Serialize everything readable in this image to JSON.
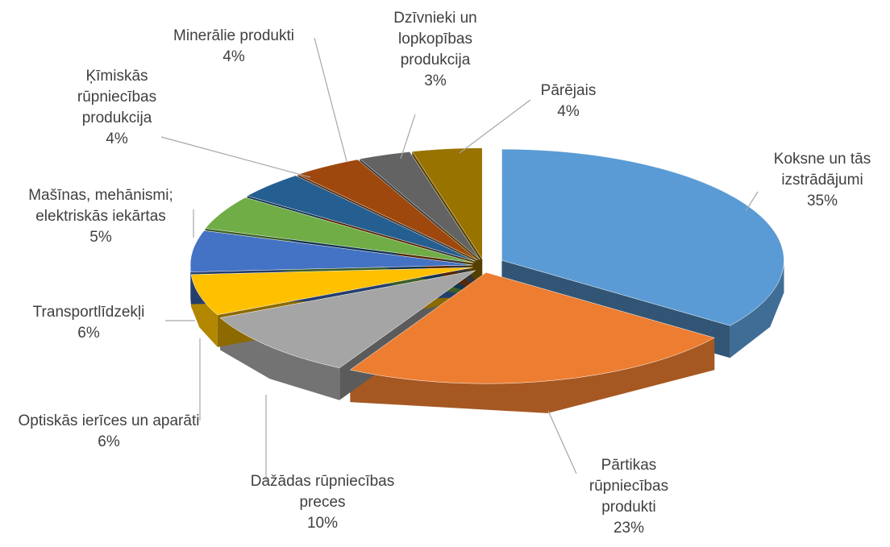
{
  "chart_data": {
    "type": "pie",
    "categories": [
      "Koksne un tās izstrādājumi",
      "Pārtikas rūpniecības produkti",
      "Dažādas rūpniecības preces",
      "Optiskās ierīces un aparāti",
      "Transportlīdzekļi",
      "Mašīnas, mehānismi; elektriskās iekārtas",
      "Ķīmiskās rūpniecības produkcija",
      "Minerālie produkti",
      "Dzīvnieki un lopkopības produkcija",
      "Pārējais"
    ],
    "values": [
      35,
      23,
      10,
      6,
      6,
      5,
      4,
      4,
      3,
      4
    ],
    "value_labels": [
      "35%",
      "23%",
      "10%",
      "6%",
      "6%",
      "5%",
      "4%",
      "4%",
      "3%",
      "4%"
    ],
    "colors": [
      "#5b9bd5",
      "#ed7d31",
      "#a5a5a5",
      "#ffc000",
      "#4472c4",
      "#70ad47",
      "#255e91",
      "#9e480e",
      "#636363",
      "#997300"
    ]
  }
}
